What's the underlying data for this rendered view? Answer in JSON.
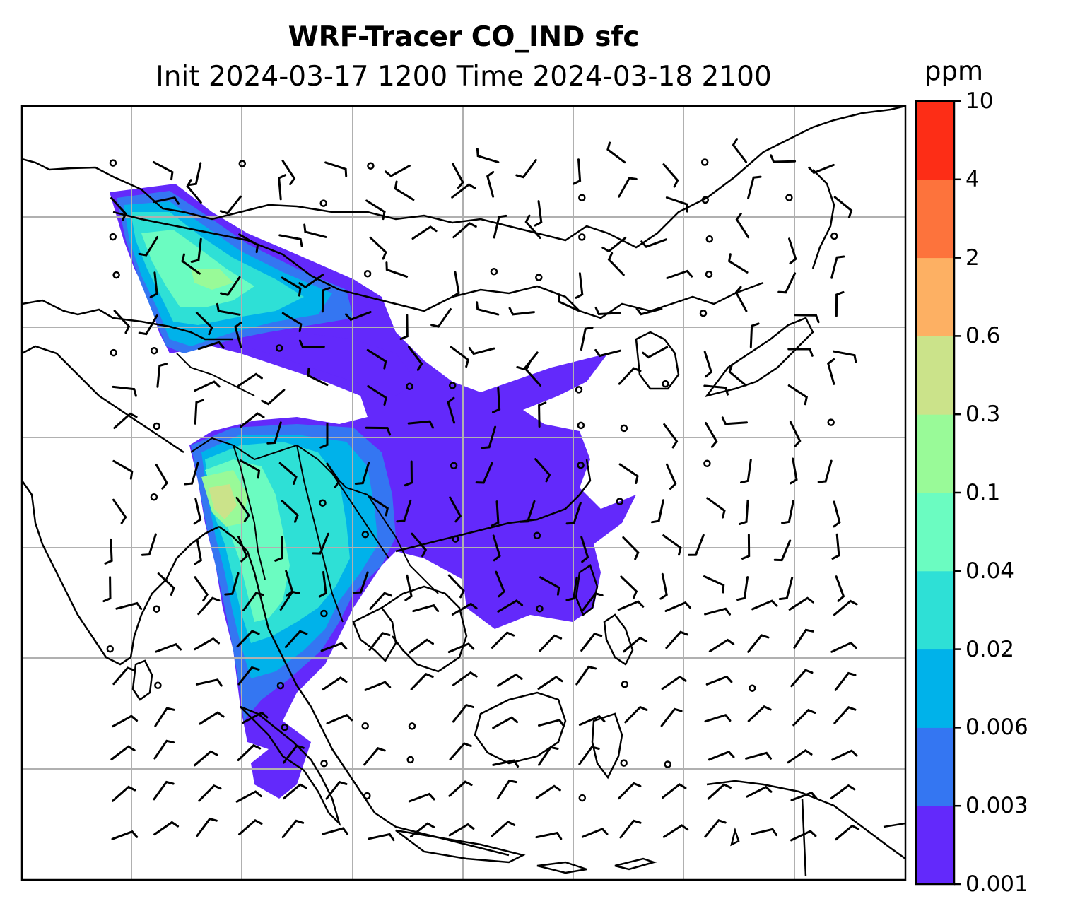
{
  "figure": {
    "title_line1": "WRF-Tracer CO_IND sfc",
    "title_line2": "Init 2024-03-17 1200 Time 2024-03-18 2100"
  },
  "colorbar": {
    "units": "ppm",
    "levels": [
      "0.001",
      "0.003",
      "0.006",
      "0.02",
      "0.04",
      "0.1",
      "0.3",
      "0.6",
      "2",
      "4",
      "10"
    ],
    "colors": [
      "#6329fb",
      "#3476f2",
      "#00b2ea",
      "#2ee0d6",
      "#6bfcc1",
      "#99fa98",
      "#cbe38a",
      "#fdb063",
      "#fd733c",
      "#fd2d16"
    ]
  },
  "map": {
    "field": "CO_IND",
    "level": "sfc",
    "gridlines": true,
    "overlays": [
      "coastlines",
      "country-borders",
      "wind-barbs",
      "tracer-concentration-fill"
    ]
  }
}
